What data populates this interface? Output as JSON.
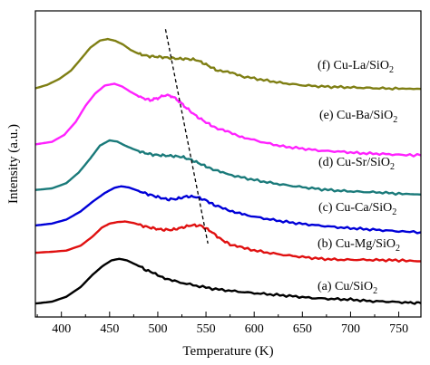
{
  "chart_data": {
    "type": "line",
    "title": "",
    "xlabel": "Temperature (K)",
    "ylabel": "Intensity (a.u.)",
    "xlim": [
      373,
      773
    ],
    "ylim": [
      0,
      10
    ],
    "x_ticks": [
      400,
      450,
      500,
      550,
      600,
      650,
      700,
      750
    ],
    "y_ticks": [],
    "grid": false,
    "legend": "labels placed to the right of each curve",
    "colors": {
      "a": "#000000",
      "b": "#e01010",
      "c": "#0000d8",
      "d": "#1a7a7a",
      "e": "#ff22ff",
      "f": "#7f7f14",
      "guide": "#000000"
    },
    "series": [
      {
        "key": "a",
        "label_prefix": "(a) Cu/SiO",
        "label_sub": "2",
        "x": [
          373,
          390,
          405,
          420,
          432,
          443,
          452,
          460,
          468,
          478,
          490,
          505,
          520,
          540,
          560,
          580,
          600,
          620,
          640,
          660,
          680,
          700,
          720,
          740,
          760,
          773
        ],
        "y": [
          0.44,
          0.5,
          0.66,
          0.98,
          1.37,
          1.67,
          1.85,
          1.9,
          1.85,
          1.7,
          1.5,
          1.3,
          1.15,
          1.02,
          0.91,
          0.84,
          0.78,
          0.73,
          0.68,
          0.62,
          0.59,
          0.57,
          0.52,
          0.5,
          0.47,
          0.45
        ]
      },
      {
        "key": "b",
        "label_prefix": "(b) Cu-Mg/SiO",
        "label_sub": "2",
        "x": [
          373,
          390,
          405,
          420,
          432,
          442,
          450,
          458,
          466,
          475,
          485,
          495,
          505,
          515,
          525,
          535,
          545,
          555,
          565,
          575,
          590,
          610,
          630,
          650,
          670,
          690,
          710,
          730,
          750,
          773
        ],
        "y": [
          2.1,
          2.13,
          2.17,
          2.33,
          2.62,
          2.92,
          3.05,
          3.1,
          3.12,
          3.07,
          2.97,
          2.9,
          2.85,
          2.85,
          2.92,
          3.0,
          2.98,
          2.8,
          2.55,
          2.37,
          2.24,
          2.12,
          2.03,
          1.96,
          1.9,
          1.87,
          1.87,
          1.86,
          1.85,
          1.82
        ]
      },
      {
        "key": "c",
        "label_prefix": "(c) Cu-Ca/SiO",
        "label_sub": "2",
        "x": [
          373,
          390,
          405,
          420,
          433,
          445,
          455,
          462,
          470,
          480,
          490,
          500,
          510,
          520,
          530,
          540,
          550,
          560,
          575,
          590,
          610,
          630,
          650,
          670,
          690,
          710,
          730,
          750,
          773
        ],
        "y": [
          2.99,
          3.05,
          3.18,
          3.45,
          3.78,
          4.05,
          4.22,
          4.27,
          4.23,
          4.12,
          4.01,
          3.92,
          3.84,
          3.86,
          3.94,
          3.92,
          3.81,
          3.63,
          3.48,
          3.34,
          3.22,
          3.12,
          3.04,
          2.98,
          2.92,
          2.88,
          2.84,
          2.8,
          2.77
        ]
      },
      {
        "key": "d",
        "label_prefix": "(d) Cu-Sr/SiO",
        "label_sub": "2",
        "x": [
          373,
          390,
          405,
          418,
          430,
          440,
          450,
          458,
          466,
          475,
          485,
          495,
          505,
          515,
          525,
          535,
          545,
          555,
          570,
          590,
          610,
          630,
          650,
          670,
          690,
          710,
          730,
          750,
          773
        ],
        "y": [
          4.15,
          4.2,
          4.37,
          4.72,
          5.18,
          5.6,
          5.77,
          5.73,
          5.6,
          5.48,
          5.37,
          5.3,
          5.28,
          5.26,
          5.23,
          5.13,
          4.99,
          4.85,
          4.68,
          4.54,
          4.42,
          4.32,
          4.24,
          4.17,
          4.12,
          4.09,
          4.07,
          4.03,
          4.0
        ]
      },
      {
        "key": "e",
        "label_prefix": "(e) Cu-Ba/SiO",
        "label_sub": "2",
        "x": [
          373,
          390,
          403,
          415,
          425,
          435,
          445,
          455,
          463,
          472,
          482,
          492,
          500,
          508,
          515,
          522,
          530,
          540,
          550,
          560,
          575,
          590,
          610,
          630,
          650,
          670,
          690,
          710,
          730,
          750,
          773
        ],
        "y": [
          5.64,
          5.72,
          5.95,
          6.38,
          6.9,
          7.3,
          7.56,
          7.62,
          7.53,
          7.35,
          7.18,
          7.08,
          7.15,
          7.25,
          7.21,
          7.05,
          6.82,
          6.56,
          6.36,
          6.18,
          6.02,
          5.86,
          5.7,
          5.57,
          5.5,
          5.43,
          5.4,
          5.35,
          5.33,
          5.3,
          5.28
        ]
      },
      {
        "key": "f",
        "label_prefix": "(f) Cu-La/SiO",
        "label_sub": "2",
        "x": [
          373,
          385,
          398,
          410,
          420,
          430,
          440,
          448,
          456,
          464,
          472,
          480,
          490,
          500,
          510,
          520,
          530,
          540,
          550,
          560,
          575,
          590,
          610,
          630,
          650,
          670,
          690,
          710,
          730,
          750,
          773
        ],
        "y": [
          7.47,
          7.58,
          7.78,
          8.05,
          8.42,
          8.8,
          9.03,
          9.08,
          9.02,
          8.9,
          8.72,
          8.6,
          8.52,
          8.5,
          8.47,
          8.44,
          8.43,
          8.4,
          8.25,
          8.08,
          7.98,
          7.85,
          7.74,
          7.64,
          7.57,
          7.53,
          7.51,
          7.49,
          7.47,
          7.46,
          7.45
        ]
      }
    ],
    "guide_line": {
      "style": "dashed",
      "x": [
        508,
        552
      ],
      "y": [
        9.4,
        2.4
      ]
    }
  }
}
